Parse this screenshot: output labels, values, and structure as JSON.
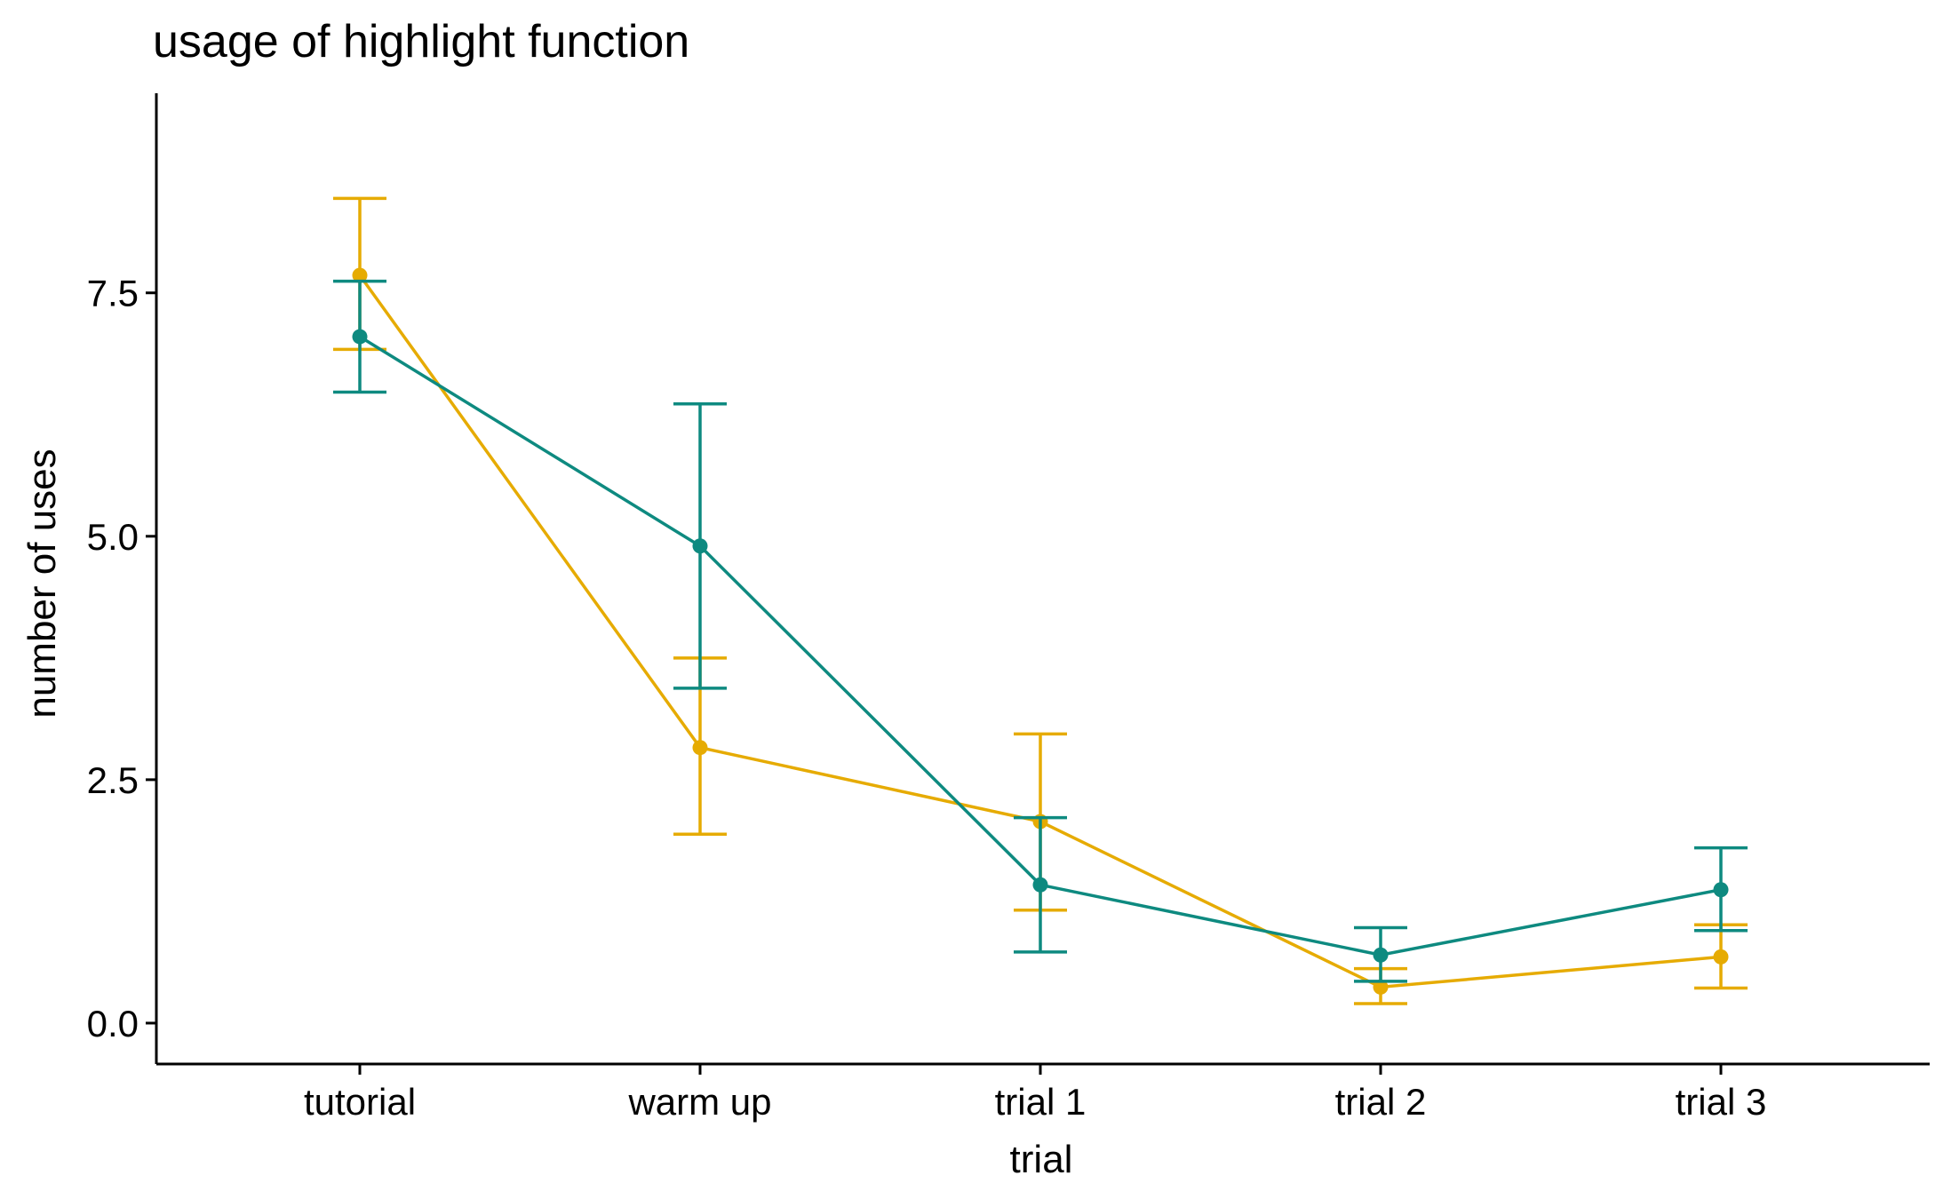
{
  "chart_data": {
    "type": "line",
    "title": "usage of highlight function",
    "xlabel": "trial",
    "ylabel": "number of uses",
    "categories": [
      "tutorial",
      "warm up",
      "trial 1",
      "trial 2",
      "trial 3"
    ],
    "ylim": [
      -0.42,
      9.55
    ],
    "yticks": [
      0.0,
      2.5,
      5.0,
      7.5
    ],
    "ytick_labels": [
      "0.0",
      "2.5",
      "5.0",
      "7.5"
    ],
    "grid": false,
    "legend": "none",
    "series": [
      {
        "color": "#E6AB02",
        "values": [
          7.68,
          2.83,
          2.07,
          0.37,
          0.68
        ],
        "error_low": [
          6.92,
          1.94,
          1.16,
          0.2,
          0.36
        ],
        "error_high": [
          8.47,
          3.75,
          2.97,
          0.56,
          1.01
        ]
      },
      {
        "color": "#0E8A80",
        "values": [
          7.05,
          4.9,
          1.42,
          0.7,
          1.37
        ],
        "error_low": [
          6.48,
          3.44,
          0.73,
          0.43,
          0.95
        ],
        "error_high": [
          7.62,
          6.36,
          2.11,
          0.98,
          1.8
        ]
      }
    ]
  }
}
